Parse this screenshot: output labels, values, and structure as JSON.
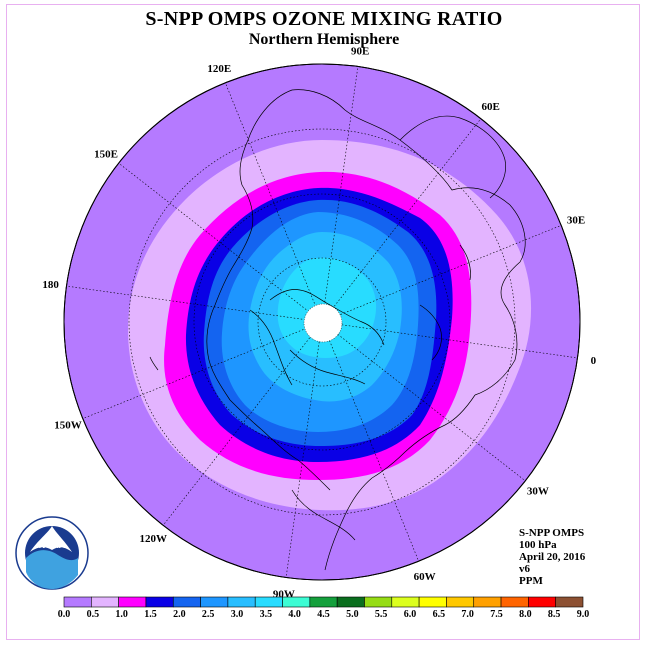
{
  "title": "S-NPP OMPS OZONE MIXING RATIO",
  "subtitle": "Northern Hemisphere",
  "longitude_labels": [
    "90E",
    "60E",
    "30E",
    "0",
    "30W",
    "60W",
    "90W",
    "120W",
    "150W",
    "180",
    "150E",
    "120E"
  ],
  "info": {
    "instrument": "S-NPP OMPS",
    "level": "100 hPa",
    "date": "April 20, 2016",
    "version": "v6",
    "units": "PPM"
  },
  "colorbar": {
    "ticks": [
      "0.0",
      "0.5",
      "1.0",
      "1.5",
      "2.0",
      "2.5",
      "3.0",
      "3.5",
      "4.0",
      "4.5",
      "5.0",
      "5.5",
      "6.0",
      "6.5",
      "7.0",
      "7.5",
      "8.0",
      "8.5",
      "9.0"
    ],
    "colors": [
      "#b57aff",
      "#e3b4ff",
      "#ff00ff",
      "#0a00e6",
      "#1464f0",
      "#1e96ff",
      "#28beff",
      "#28dcff",
      "#3cfcd4",
      "#14a03c",
      "#0a6e1e",
      "#96dc14",
      "#dcff1e",
      "#ffff00",
      "#ffc800",
      "#ffa000",
      "#ff6400",
      "#ff0000",
      "#8c5032"
    ]
  },
  "map_colors": {
    "outer": "#b57aff",
    "ring1": "#e3b4ff",
    "ring2": "#ff00ff",
    "ring3": "#0a00e6",
    "ring4": "#1464f0",
    "ring5": "#1e96ff",
    "ring6": "#28beff",
    "ring7": "#28dcff",
    "pole": "#ffffff"
  },
  "logo_text": "NOAA"
}
